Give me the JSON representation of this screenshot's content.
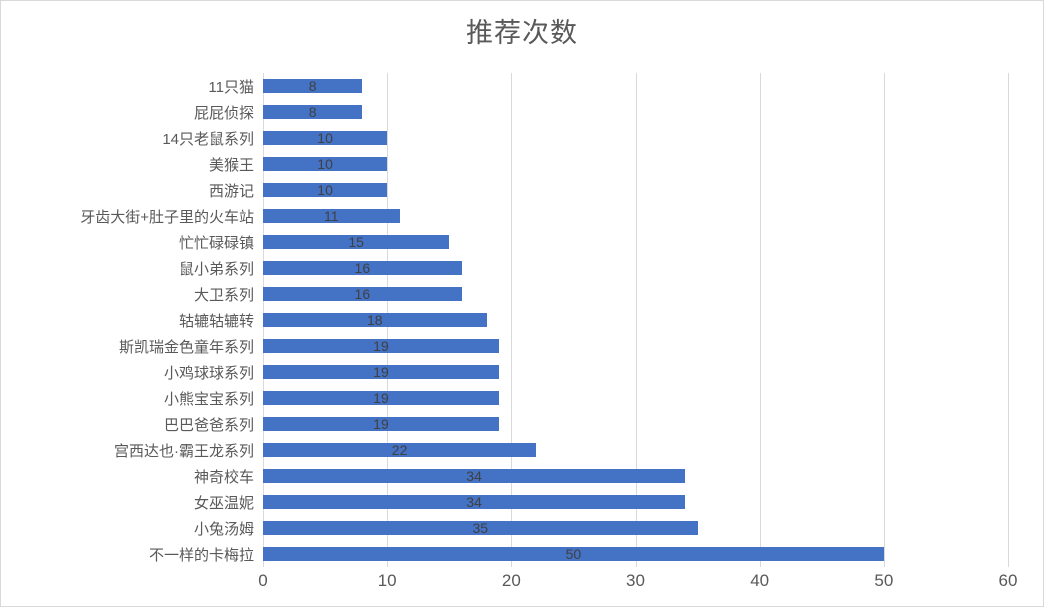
{
  "chart_data": {
    "type": "bar",
    "orientation": "horizontal",
    "title": "推荐次数",
    "categories": [
      "11只猫",
      "屁屁侦探",
      "14只老鼠系列",
      "美猴王",
      "西游记",
      "牙齿大街+肚子里的火车站",
      "忙忙碌碌镇",
      "鼠小弟系列",
      "大卫系列",
      "轱辘轱辘转",
      "斯凯瑞金色童年系列",
      "小鸡球球系列",
      "小熊宝宝系列",
      "巴巴爸爸系列",
      "宫西达也·霸王龙系列",
      "神奇校车",
      "女巫温妮",
      "小兔汤姆",
      "不一样的卡梅拉"
    ],
    "values": [
      8,
      8,
      10,
      10,
      10,
      11,
      15,
      16,
      16,
      18,
      19,
      19,
      19,
      19,
      22,
      34,
      34,
      35,
      50
    ],
    "xlabel": "",
    "ylabel": "",
    "xlim": [
      0,
      60
    ],
    "x_ticks": [
      0,
      10,
      20,
      30,
      40,
      50,
      60
    ],
    "grid": true,
    "legend": false,
    "data_labels_position": "inside-center"
  },
  "colors": {
    "bar": "#4472c4",
    "gridline": "#d9d9d9",
    "axis_text": "#595959",
    "title_text": "#595959",
    "data_label_text": "#404040",
    "frame_border": "#d9d9d9",
    "background": "#ffffff"
  }
}
